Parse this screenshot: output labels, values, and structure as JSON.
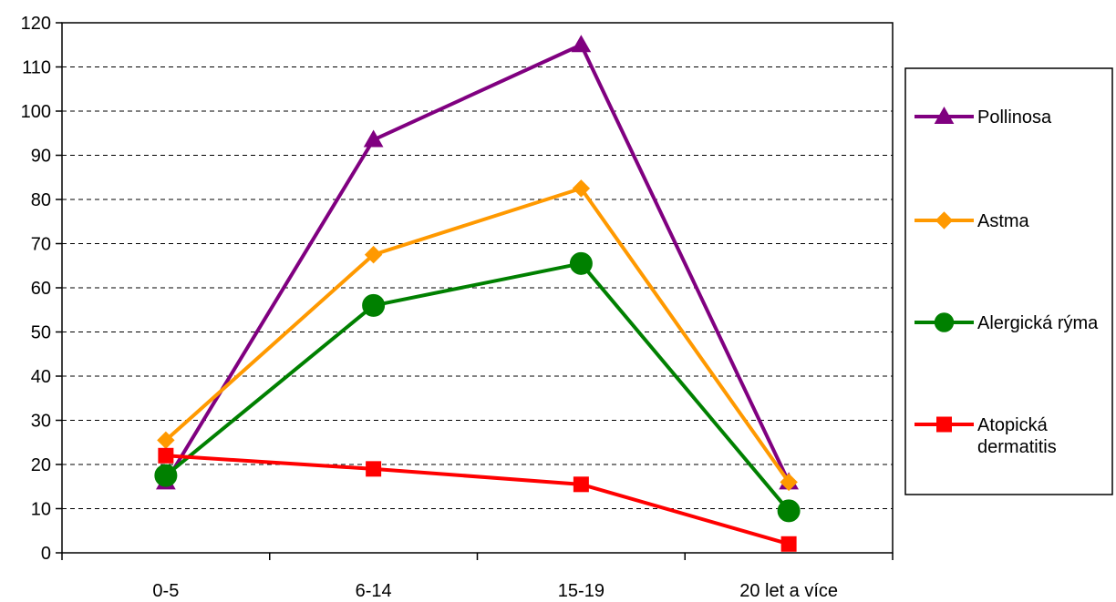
{
  "chart_data": {
    "type": "line",
    "categories": [
      "0-5",
      "6-14",
      "15-19",
      "20 let a více"
    ],
    "ylim": [
      0,
      120
    ],
    "yticks": [
      0,
      10,
      20,
      30,
      40,
      50,
      60,
      70,
      80,
      90,
      100,
      110,
      120
    ],
    "grid": "horizontal dashed",
    "legend_position": "right",
    "series": [
      {
        "name": "Pollinosa",
        "values": [
          16,
          93.5,
          115,
          16
        ],
        "color": "#800080",
        "marker": "triangle"
      },
      {
        "name": "Astma",
        "values": [
          25.5,
          67.5,
          82.5,
          16
        ],
        "color": "#FF9900",
        "marker": "diamond"
      },
      {
        "name": "Alergická rýma",
        "values": [
          17.5,
          56,
          65.5,
          9.5
        ],
        "color": "#008000",
        "marker": "circle"
      },
      {
        "name": "Atopická dermatitis",
        "values": [
          22,
          19,
          15.5,
          2
        ],
        "color": "#FF0000",
        "marker": "square"
      }
    ]
  }
}
